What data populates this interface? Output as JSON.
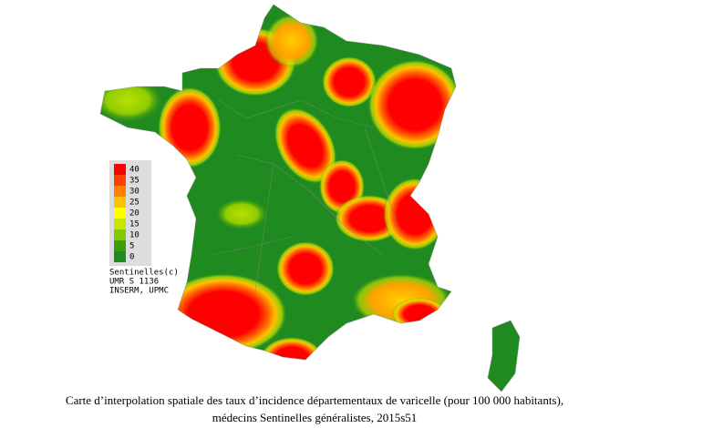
{
  "legend": {
    "levels": [
      {
        "value": 40,
        "color": "#ff0000"
      },
      {
        "value": 35,
        "color": "#ff4000"
      },
      {
        "value": 30,
        "color": "#ff8000"
      },
      {
        "value": 25,
        "color": "#ffc000"
      },
      {
        "value": 20,
        "color": "#ffff00"
      },
      {
        "value": 15,
        "color": "#c8e600"
      },
      {
        "value": 10,
        "color": "#80c800"
      },
      {
        "value": 5,
        "color": "#3c9e00"
      },
      {
        "value": 0,
        "color": "#1f8a1f"
      }
    ]
  },
  "credits": [
    "Sentinelles(c)",
    "UMR S 1136",
    "INSERM, UPMC"
  ],
  "caption": [
    "Carte d’interpolation spatiale des taux d’incidence départementaux de varicelle (pour 100 000 habitants),",
    "médecins Sentinelles généralistes, 2015s51"
  ]
}
